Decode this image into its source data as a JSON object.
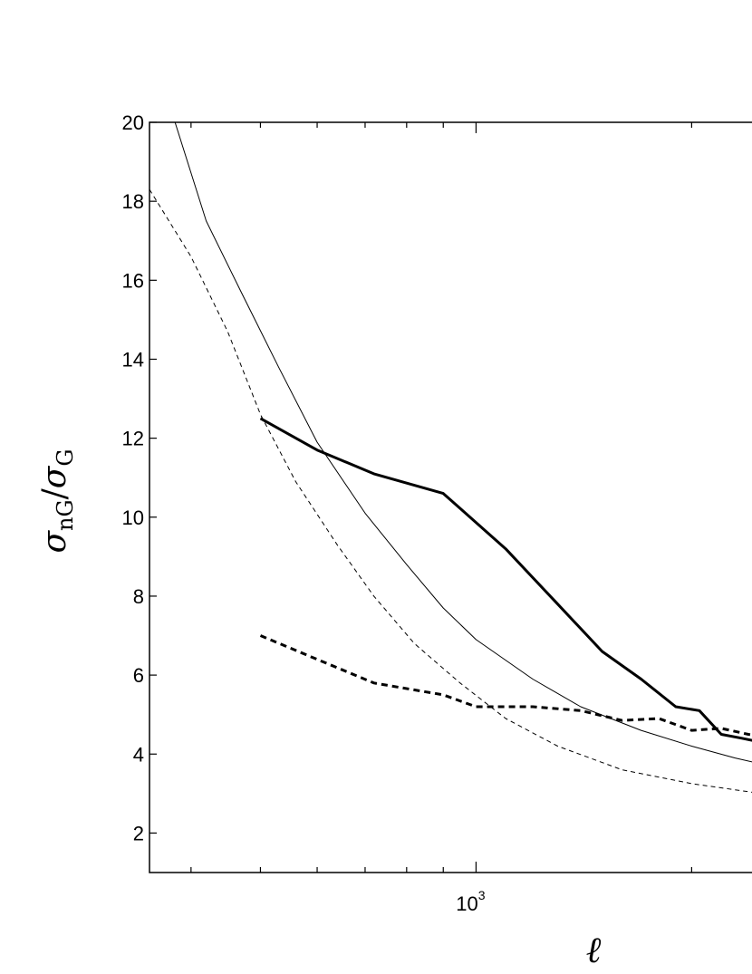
{
  "chart_data": {
    "type": "line",
    "xscale": "log",
    "xlim": [
      350,
      2500
    ],
    "ylim": [
      1,
      20
    ],
    "grid": false,
    "legend": "none",
    "yticks": [
      2,
      4,
      6,
      8,
      10,
      12,
      14,
      16,
      18,
      20
    ],
    "ytick_labels": [
      "2",
      "4",
      "6",
      "8",
      "10",
      "12",
      "14",
      "16",
      "18",
      "20"
    ],
    "xticks_major": [
      1000
    ],
    "xtick_labels": [
      {
        "base": "10",
        "exp": "3"
      }
    ],
    "xticks_minor": [
      400,
      500,
      600,
      700,
      800,
      900,
      2000
    ],
    "xlabel": "ℓ",
    "ylabel": {
      "main": "σ",
      "sub1": "nG",
      "sep": "/",
      "sub2": "G"
    },
    "series": [
      {
        "style": "thick-solid",
        "x": [
          500,
          600,
          720,
          900,
          1100,
          1300,
          1500,
          1700,
          1900,
          2050,
          2200,
          2350,
          2500
        ],
        "y": [
          12.5,
          11.7,
          11.1,
          10.6,
          9.2,
          7.8,
          6.6,
          5.9,
          5.2,
          5.1,
          4.5,
          4.4,
          4.3
        ]
      },
      {
        "style": "thick-dashed",
        "x": [
          500,
          600,
          720,
          900,
          1000,
          1200,
          1400,
          1600,
          1800,
          2000,
          2200,
          2400,
          2500
        ],
        "y": [
          7.0,
          6.4,
          5.8,
          5.5,
          5.2,
          5.2,
          5.1,
          4.85,
          4.9,
          4.6,
          4.65,
          4.5,
          4.45
        ]
      },
      {
        "style": "thin-solid",
        "x": [
          380,
          420,
          470,
          530,
          600,
          700,
          800,
          900,
          1000,
          1200,
          1400,
          1700,
          2000,
          2300,
          2500
        ],
        "y": [
          20.0,
          17.5,
          15.7,
          13.8,
          11.9,
          10.1,
          8.8,
          7.7,
          6.9,
          5.9,
          5.2,
          4.6,
          4.2,
          3.9,
          3.75
        ]
      },
      {
        "style": "thin-dashed",
        "x": [
          350,
          400,
          450,
          500,
          560,
          640,
          720,
          820,
          950,
          1100,
          1300,
          1600,
          2000,
          2500
        ],
        "y": [
          18.3,
          16.6,
          14.7,
          12.6,
          10.9,
          9.3,
          8.0,
          6.8,
          5.8,
          4.9,
          4.2,
          3.6,
          3.25,
          3.0
        ]
      }
    ]
  }
}
